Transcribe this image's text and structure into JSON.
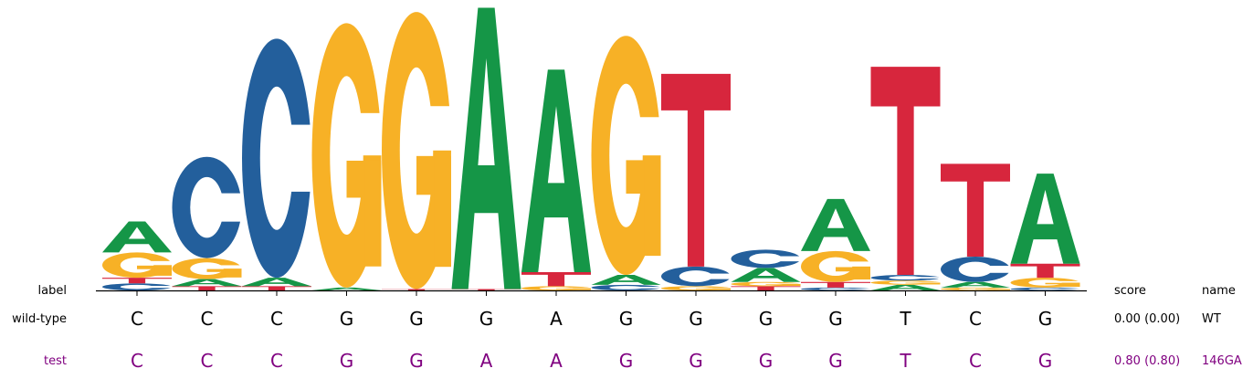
{
  "chart_data": {
    "type": "sequence-logo",
    "ylim": [
      0,
      2
    ],
    "positions": 14,
    "letter_colors": {
      "A": "#159647",
      "C": "#235f9c",
      "G": "#f7b126",
      "T": "#d7263d"
    },
    "stacks": [
      [
        {
          "base": "C",
          "height": 0.05
        },
        {
          "base": "T",
          "height": 0.04
        },
        {
          "base": "G",
          "height": 0.18
        },
        {
          "base": "A",
          "height": 0.22
        }
      ],
      [
        {
          "base": "T",
          "height": 0.03
        },
        {
          "base": "A",
          "height": 0.05
        },
        {
          "base": "G",
          "height": 0.15
        },
        {
          "base": "C",
          "height": 0.72
        }
      ],
      [
        {
          "base": "T",
          "height": 0.03
        },
        {
          "base": "A",
          "height": 0.06
        },
        {
          "base": "C",
          "height": 1.7
        }
      ],
      [
        {
          "base": "A",
          "height": 0.02
        },
        {
          "base": "G",
          "height": 1.88
        }
      ],
      [
        {
          "base": "T",
          "height": 0.01
        },
        {
          "base": "G",
          "height": 1.97
        }
      ],
      [
        {
          "base": "T",
          "height": 0.01
        },
        {
          "base": "A",
          "height": 2.0
        }
      ],
      [
        {
          "base": "G",
          "height": 0.03
        },
        {
          "base": "T",
          "height": 0.1
        },
        {
          "base": "A",
          "height": 1.44
        }
      ],
      [
        {
          "base": "C",
          "height": 0.04
        },
        {
          "base": "A",
          "height": 0.07
        },
        {
          "base": "G",
          "height": 1.7
        }
      ],
      [
        {
          "base": "G",
          "height": 0.03
        },
        {
          "base": "C",
          "height": 0.14
        },
        {
          "base": "T",
          "height": 1.37
        }
      ],
      [
        {
          "base": "T",
          "height": 0.03
        },
        {
          "base": "G",
          "height": 0.03
        },
        {
          "base": "A",
          "height": 0.1
        },
        {
          "base": "C",
          "height": 0.13
        }
      ],
      [
        {
          "base": "C",
          "height": 0.02
        },
        {
          "base": "T",
          "height": 0.04
        },
        {
          "base": "G",
          "height": 0.22
        },
        {
          "base": "A",
          "height": 0.37
        }
      ],
      [
        {
          "base": "A",
          "height": 0.04
        },
        {
          "base": "G",
          "height": 0.03
        },
        {
          "base": "C",
          "height": 0.04
        },
        {
          "base": "T",
          "height": 1.48
        }
      ],
      [
        {
          "base": "G",
          "height": 0.02
        },
        {
          "base": "A",
          "height": 0.04
        },
        {
          "base": "C",
          "height": 0.18
        },
        {
          "base": "T",
          "height": 0.66
        }
      ],
      [
        {
          "base": "C",
          "height": 0.02
        },
        {
          "base": "G",
          "height": 0.07
        },
        {
          "base": "T",
          "height": 0.1
        },
        {
          "base": "A",
          "height": 0.64
        }
      ]
    ],
    "sequences": {
      "header": {
        "label": "label",
        "score": "score",
        "name": "name"
      },
      "rows": [
        {
          "label": "wild-type",
          "bases": [
            "C",
            "C",
            "C",
            "G",
            "G",
            "G",
            "A",
            "G",
            "G",
            "G",
            "G",
            "T",
            "C",
            "G"
          ],
          "score": "0.00 (0.00)",
          "name": "WT",
          "color": "#000000"
        },
        {
          "label": "test",
          "bases": [
            "C",
            "C",
            "C",
            "G",
            "G",
            "A",
            "A",
            "G",
            "G",
            "G",
            "G",
            "T",
            "C",
            "G"
          ],
          "score": "0.80 (0.80)",
          "name": "146GA",
          "color": "#800080"
        }
      ]
    }
  }
}
